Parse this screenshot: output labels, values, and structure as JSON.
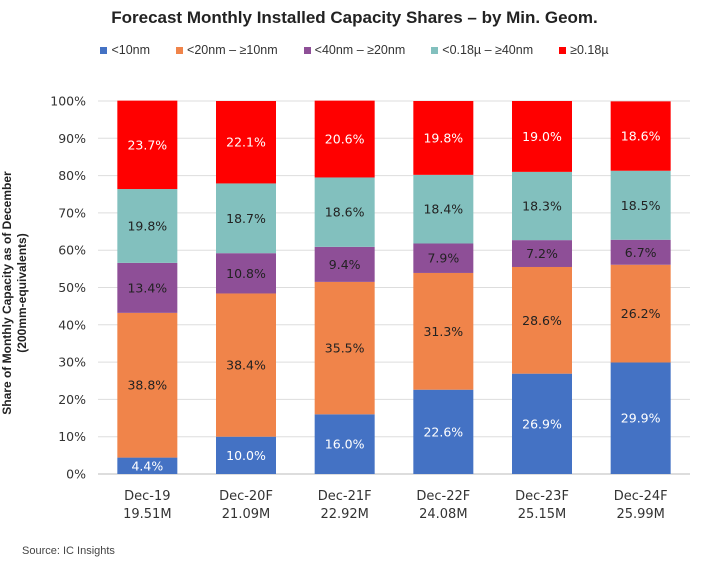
{
  "chart_data": {
    "type": "bar",
    "stacked": true,
    "title": "Forecast Monthly Installed Capacity Shares – by Min. Geom.",
    "ylabel_line1": "Share of Monthly Capacity as of December",
    "ylabel_line2": "(200mm-equivalents)",
    "ylim": [
      0,
      100
    ],
    "yticks": [
      "0%",
      "10%",
      "20%",
      "30%",
      "40%",
      "50%",
      "60%",
      "70%",
      "80%",
      "90%",
      "100%"
    ],
    "grid": true,
    "legend_position": "top",
    "categories": [
      "Dec-19",
      "Dec-20F",
      "Dec-21F",
      "Dec-22F",
      "Dec-23F",
      "Dec-24F"
    ],
    "category_sublabels": [
      "19.51M",
      "21.09M",
      "22.92M",
      "24.08M",
      "25.15M",
      "25.99M"
    ],
    "series": [
      {
        "name": "<10nm",
        "color": "#4472C4",
        "values": [
          4.4,
          10.0,
          16.0,
          22.6,
          26.9,
          29.9
        ]
      },
      {
        "name": "<20nm – ≥10nm",
        "color": "#F0844A",
        "values": [
          38.8,
          38.4,
          35.5,
          31.3,
          28.6,
          26.2
        ]
      },
      {
        "name": "<40nm – ≥20nm",
        "color": "#8E4F97",
        "values": [
          13.4,
          10.8,
          9.4,
          7.9,
          7.2,
          6.7
        ]
      },
      {
        "name": "<0.18µ – ≥40nm",
        "color": "#82C0BE",
        "values": [
          19.8,
          18.7,
          18.6,
          18.4,
          18.3,
          18.5
        ]
      },
      {
        "name": "≥0.18µ",
        "color": "#FF0000",
        "values": [
          23.7,
          22.1,
          20.6,
          19.8,
          19.0,
          18.6
        ]
      }
    ]
  },
  "source": "Source:  IC Insights"
}
